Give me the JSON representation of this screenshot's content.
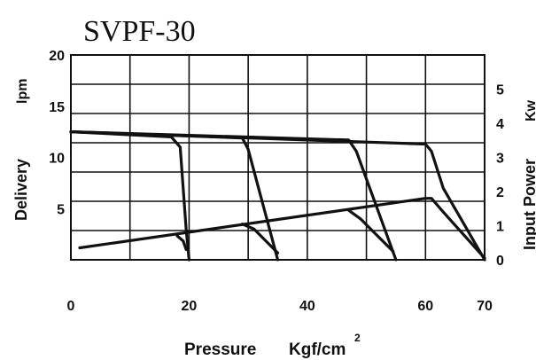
{
  "chart_data": {
    "type": "line",
    "title": "SVPF-30",
    "xlabel": "Pressure",
    "xunit_main": "Kgf/cm",
    "xunit_sup": "2",
    "ylabel_left": "Delivery",
    "ylabel_left_unit": "lpm",
    "ylabel_right": "Input Power",
    "ylabel_right_unit": "Kw",
    "xlim": [
      0,
      70
    ],
    "ylim_left": [
      0,
      20
    ],
    "ylim_right": [
      0,
      6
    ],
    "x_ticks": [
      0,
      20,
      40,
      60,
      70
    ],
    "x_tick_labels": [
      "0",
      "20",
      "40",
      "60",
      "70"
    ],
    "y_left_ticks": [
      5,
      10,
      15,
      20
    ],
    "y_left_tick_labels": [
      "5",
      "10",
      "15",
      "20"
    ],
    "y_right_ticks": [
      0,
      1,
      2,
      3,
      4,
      5
    ],
    "y_right_tick_labels": [
      "0",
      "1",
      "2",
      "3",
      "4",
      "5"
    ],
    "grid": true,
    "series": [
      {
        "axis": "left",
        "x": [
          0,
          17,
          18.5,
          19.5,
          20
        ],
        "y": [
          12.5,
          12,
          11,
          3,
          0
        ]
      },
      {
        "axis": "left",
        "x": [
          0,
          29,
          30,
          35
        ],
        "y": [
          12.5,
          11.9,
          10.8,
          0
        ]
      },
      {
        "axis": "left",
        "x": [
          0,
          47,
          48.3,
          55
        ],
        "y": [
          12.5,
          11.7,
          10.6,
          0
        ]
      },
      {
        "axis": "left",
        "x": [
          0,
          60,
          61,
          63,
          70
        ],
        "y": [
          12.5,
          11.3,
          10.6,
          7,
          0
        ]
      },
      {
        "axis": "right",
        "x": [
          1.5,
          60,
          61,
          63,
          70
        ],
        "y": [
          0.35,
          1.8,
          1.8,
          1.4,
          0.05
        ]
      },
      {
        "axis": "right",
        "x": [
          18,
          19,
          19.5
        ],
        "y": [
          0.7,
          0.55,
          0.3
        ]
      },
      {
        "axis": "right",
        "x": [
          29,
          31,
          35
        ],
        "y": [
          1.05,
          0.9,
          0.2
        ]
      },
      {
        "axis": "right",
        "x": [
          47,
          49,
          54.5
        ],
        "y": [
          1.45,
          1.2,
          0.25
        ]
      }
    ]
  }
}
